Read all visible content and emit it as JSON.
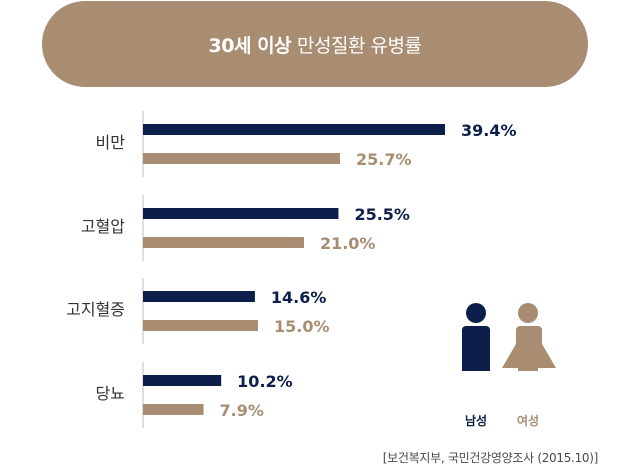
{
  "title": {
    "bold": "30세 이상",
    "rest": "만성질환 유병률"
  },
  "colors": {
    "male": "#0c1f4a",
    "female": "#a88d72",
    "title_bg": "#a88d72",
    "axis": "#bdbdbd"
  },
  "chart_data": {
    "type": "bar",
    "orientation": "horizontal",
    "categories": [
      "비만",
      "고혈압",
      "고지혈증",
      "당뇨"
    ],
    "series": [
      {
        "name": "남성",
        "values": [
          39.4,
          25.5,
          14.6,
          10.2
        ],
        "labels": [
          "39.4%",
          "25.5%",
          "14.6%",
          "10.2%"
        ]
      },
      {
        "name": "여성",
        "values": [
          25.7,
          21.0,
          15.0,
          7.9
        ],
        "labels": [
          "25.7%",
          "21.0%",
          "15.0%",
          "7.9%"
        ]
      }
    ],
    "xlim": [
      0,
      39.4
    ],
    "grid": false,
    "legend_position": "bottom-right"
  },
  "legend": {
    "male_label": "남성",
    "male_icon": "male-person-icon",
    "female_label": "여성",
    "female_icon": "female-person-icon"
  },
  "source": "[보건복지부, 국민건강영양조사 (2015.10)]"
}
